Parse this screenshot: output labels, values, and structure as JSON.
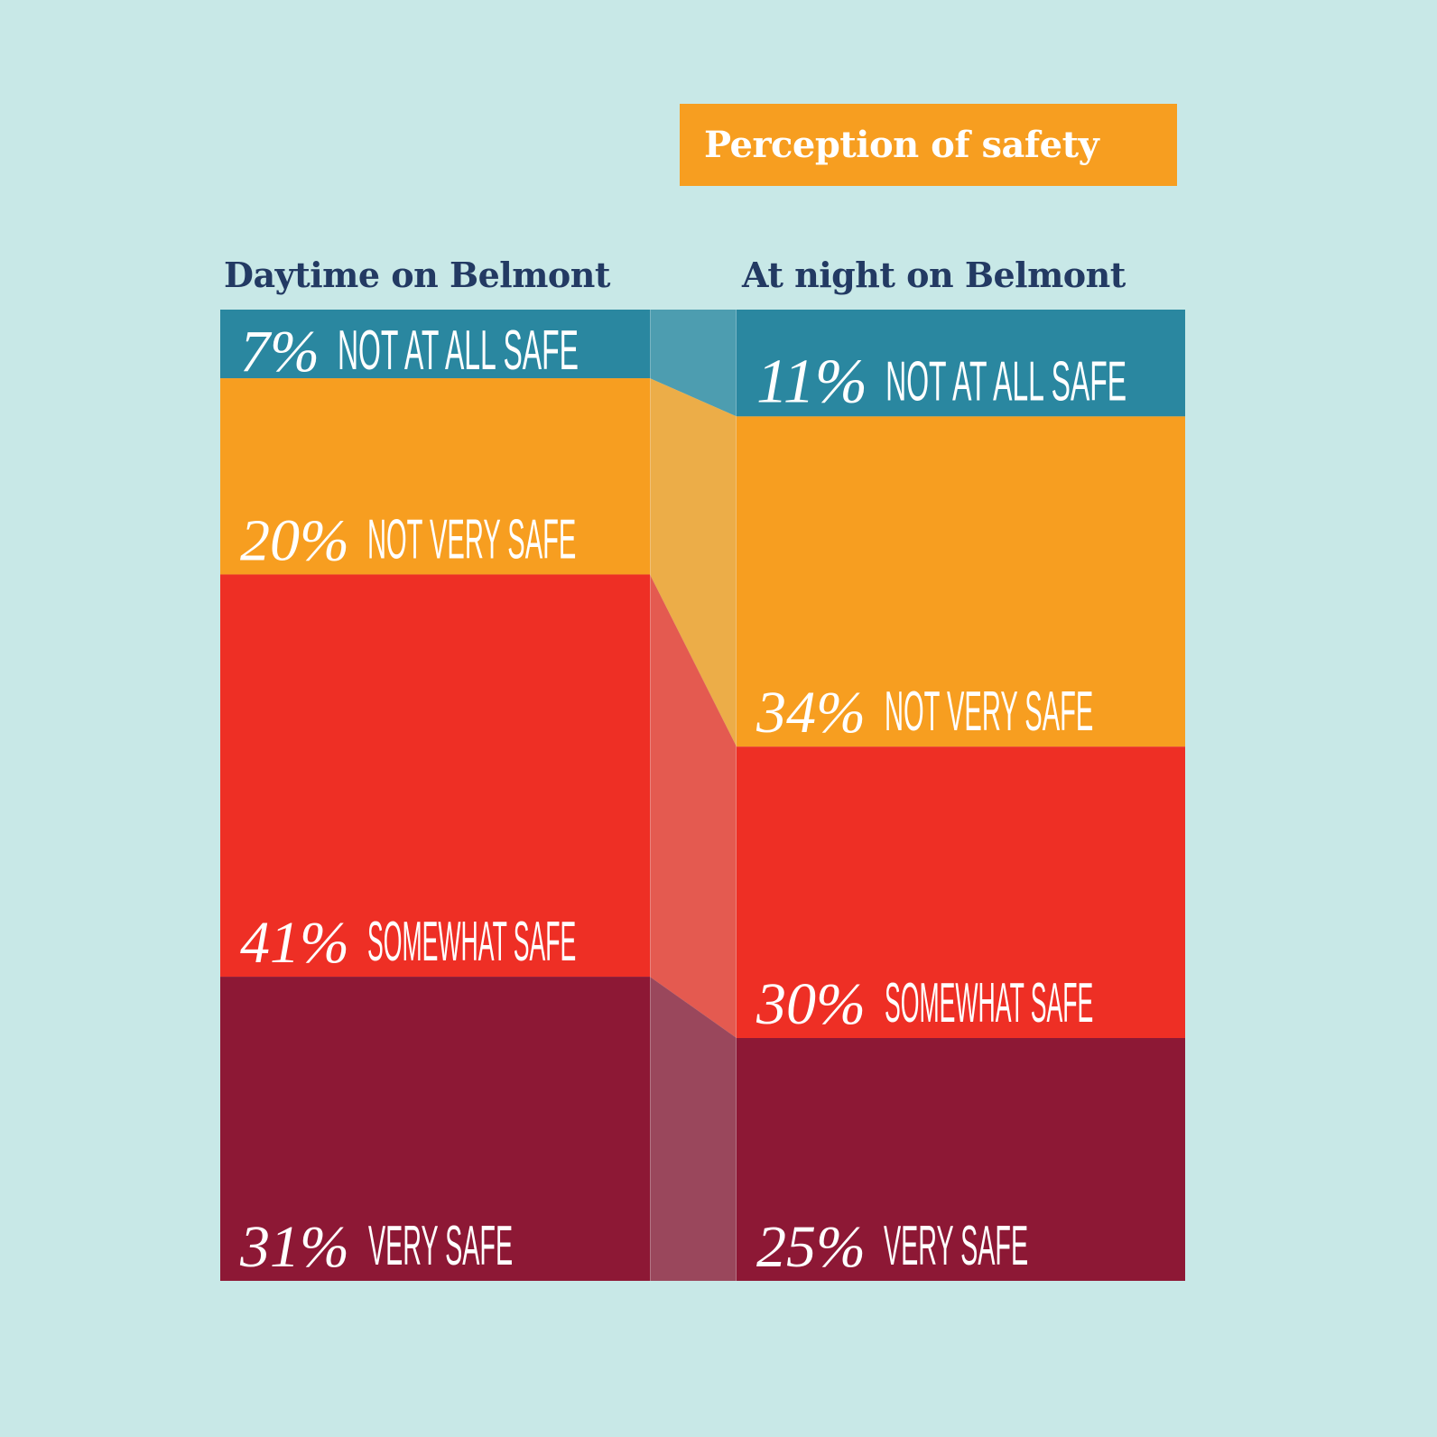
{
  "chart_data": {
    "type": "bar",
    "subtype": "stacked-100-percent-with-connectors",
    "title": "Perception of safety",
    "categories": [
      "Daytime on Belmont",
      "At night on Belmont"
    ],
    "series": [
      {
        "name": "NOT AT ALL SAFE",
        "values": [
          7,
          11
        ],
        "color": "#2a87a0",
        "connector_color": "#4d9db0"
      },
      {
        "name": "NOT VERY SAFE",
        "values": [
          20,
          34
        ],
        "color": "#f79e20",
        "connector_color": "#ecad48"
      },
      {
        "name": "SOMEWHAT SAFE",
        "values": [
          41,
          30
        ],
        "color": "#ee2f25",
        "connector_color": "#e45a50"
      },
      {
        "name": "VERY SAFE",
        "values": [
          31,
          25
        ],
        "color": "#8d1835",
        "connector_color": "#9a475c"
      }
    ],
    "value_labels": [
      [
        "7%",
        "20%",
        "41%",
        "31%"
      ],
      [
        "11%",
        "34%",
        "30%",
        "25%"
      ]
    ],
    "unit": "%",
    "legend": "none",
    "grid": false
  },
  "colors": {
    "background": "#c8e8e7",
    "title_box": "#f79e20",
    "heading_text": "#233a63"
  }
}
